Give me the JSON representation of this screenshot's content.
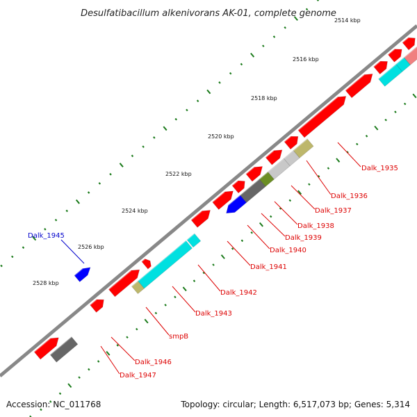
{
  "title": "Desulfatibacillum alkenivorans AK-01, complete genome",
  "footer": {
    "accession": "Accession: NC_011768",
    "summary": "Topology: circular; Length: 6,517,073 bp; Genes: 5,314"
  },
  "colors": {
    "forward": "#ff0000",
    "reverse": "#ff0000",
    "cyan": "#00e0e0",
    "grey": "#666666",
    "lightgrey": "#c8c8c8",
    "olive": "#bdb76b",
    "darkolive": "#6b8e23",
    "blue": "#0000ff",
    "pink": "#f08080",
    "backbone": "#888888",
    "label_red": "#dd0000",
    "label_blue": "#0000cc",
    "tick": "#1a7a1a"
  },
  "kbp_labels": [
    "2514 kbp",
    "2516 kbp",
    "2518 kbp",
    "2520 kbp",
    "2522 kbp",
    "2524 kbp",
    "2526 kbp",
    "2528 kbp"
  ],
  "gene_labels": [
    {
      "text": "Dalk_1935",
      "color": "red"
    },
    {
      "text": "Dalk_1936",
      "color": "red"
    },
    {
      "text": "Dalk_1937",
      "color": "red"
    },
    {
      "text": "Dalk_1938",
      "color": "red"
    },
    {
      "text": "Dalk_1939",
      "color": "red"
    },
    {
      "text": "Dalk_1940",
      "color": "red"
    },
    {
      "text": "Dalk_1941",
      "color": "red"
    },
    {
      "text": "Dalk_1942",
      "color": "red"
    },
    {
      "text": "Dalk_1943",
      "color": "red"
    },
    {
      "text": "smpB",
      "color": "red"
    },
    {
      "text": "Dalk_1946",
      "color": "red"
    },
    {
      "text": "Dalk_1947",
      "color": "red"
    },
    {
      "text": "Dalk_1945",
      "color": "blue"
    }
  ]
}
